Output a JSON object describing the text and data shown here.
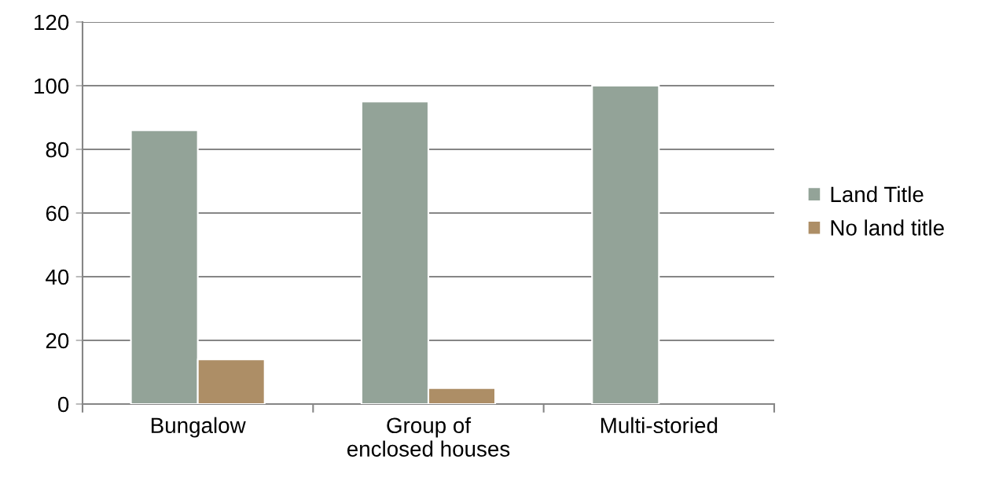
{
  "chart_data": {
    "type": "bar",
    "categories": [
      "Bungalow",
      "Group of\nenclosed houses",
      "Multi-storied"
    ],
    "series": [
      {
        "name": "Land Title",
        "color": "#93a398",
        "values": [
          86,
          95,
          100
        ]
      },
      {
        "name": "No land title",
        "color": "#ad8e66",
        "values": [
          14,
          5,
          null
        ]
      }
    ],
    "ylim": [
      0,
      120
    ],
    "yticks": [
      0,
      20,
      40,
      60,
      80,
      100,
      120
    ],
    "grid": "y",
    "legend": "right"
  }
}
